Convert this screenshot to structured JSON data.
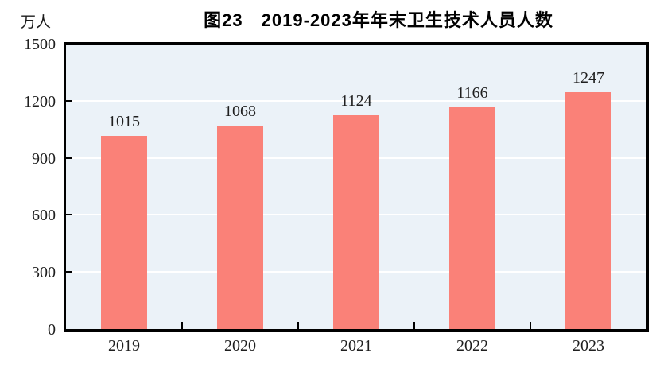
{
  "chart_data": {
    "type": "bar",
    "title": "图23　2019-2023年年末卫生技术人员人数",
    "unit_label": "万人",
    "categories": [
      "2019",
      "2020",
      "2021",
      "2022",
      "2023"
    ],
    "values": [
      1015,
      1068,
      1124,
      1166,
      1247
    ],
    "value_labels": [
      "1015",
      "1068",
      "1124",
      "1166",
      "1247"
    ],
    "ylim": [
      0,
      1500
    ],
    "yticks": [
      0,
      300,
      600,
      900,
      1200,
      1500
    ],
    "grid": "horizontal white lines at y tick positions, behind bars",
    "legend": "none",
    "colors": {
      "bar": "#FA8178",
      "plot_background": "#EBF2F8",
      "gridline": "#FFFFFF",
      "axis": "#000000",
      "text": "#1F1F1F"
    }
  }
}
